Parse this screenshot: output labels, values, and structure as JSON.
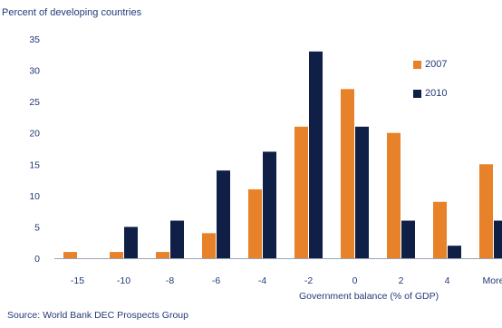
{
  "chart_data": {
    "type": "bar",
    "title": "",
    "ylabel": "Percent of developing countries",
    "xlabel": "Government balance (% of GDP)",
    "categories": [
      "-15",
      "-10",
      "-8",
      "-6",
      "-4",
      "-2",
      "0",
      "2",
      "4",
      "More"
    ],
    "series": [
      {
        "name": "2007",
        "color": "#e8822a",
        "values": [
          1,
          1,
          1,
          4,
          11,
          21,
          27,
          20,
          9,
          15
        ]
      },
      {
        "name": "2010",
        "color": "#0f1f45",
        "values": [
          0,
          5,
          6,
          14,
          17,
          33,
          21,
          6,
          2,
          6
        ]
      }
    ],
    "ylim": [
      0,
      35
    ],
    "yticks": [
      0,
      5,
      10,
      15,
      20,
      25,
      30,
      35
    ],
    "grid": false,
    "legend_position": "top-right",
    "source": "Source: World Bank DEC Prospects Group"
  }
}
